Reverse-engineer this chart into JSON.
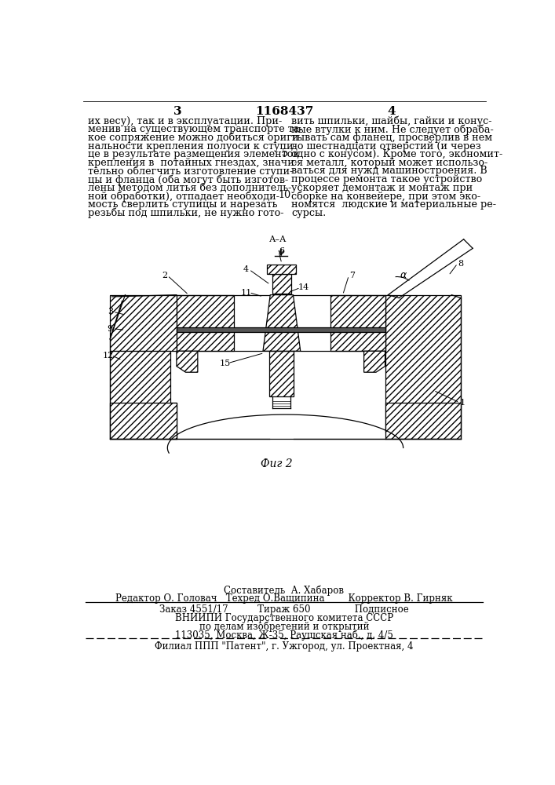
{
  "background_color": "#ffffff",
  "header": {
    "left_page_num": "3",
    "center_patent_num": "1168437",
    "right_page_num": "4"
  },
  "left_lines": [
    "их весу), так и в эксплуатации. При-",
    "менив на существующем транспорте та-",
    "кое сопряжение можно добиться ориги-",
    "нальности крепления полуоси к ступи-",
    "це в результате размещения элементов",
    "крепления в  потайных гнездах, значи-",
    "тельно облегчить изготовление ступи-",
    "цы и фланца (оба могут быть изготов-",
    "лены методом литья без дополнитель-",
    "ной обработки), отпадает необходи-",
    "мость сверлить ступицы и нарезать",
    "резьбы под шпильки, не нужно гото-"
  ],
  "right_lines": [
    "вить шпильки, шайбы, гайки и конус-",
    "ные втулки к ним. Не следует обраба-",
    "тывать сам фланец, просверлив в нем",
    "до шестнадцати отверстий (и через",
    "одно с конусом). Кроме того, экономит-",
    "ся металл, который может использо-",
    "ваться для нужд машиностроения. В",
    "процессе ремонта такое устройство",
    "ускоряет демонтаж и монтаж при",
    "сборке на конвейере, при этом эко-",
    "номятся  людские и материальные ре-",
    "сурсы."
  ],
  "footer_sestavitel": "Составитель  А. Хабаров",
  "footer_editor": "Редактор О. Головач   Техред О.Ващипина        Корректор В. Гирняк",
  "footer_zakaz": "Заказ 4551/17          Тираж 650               Подписное",
  "footer_vniip1": "ВНИИПИ Государственного комитета СССР",
  "footer_vniip2": "по делам изобретений и открытий",
  "footer_vniip3": "113035, Москва, Ж-35, Раушская наб., д. 4/5",
  "footer_filial": "Филиал ППП \"Патент\", г. Ужгород, ул. Проектная, 4"
}
